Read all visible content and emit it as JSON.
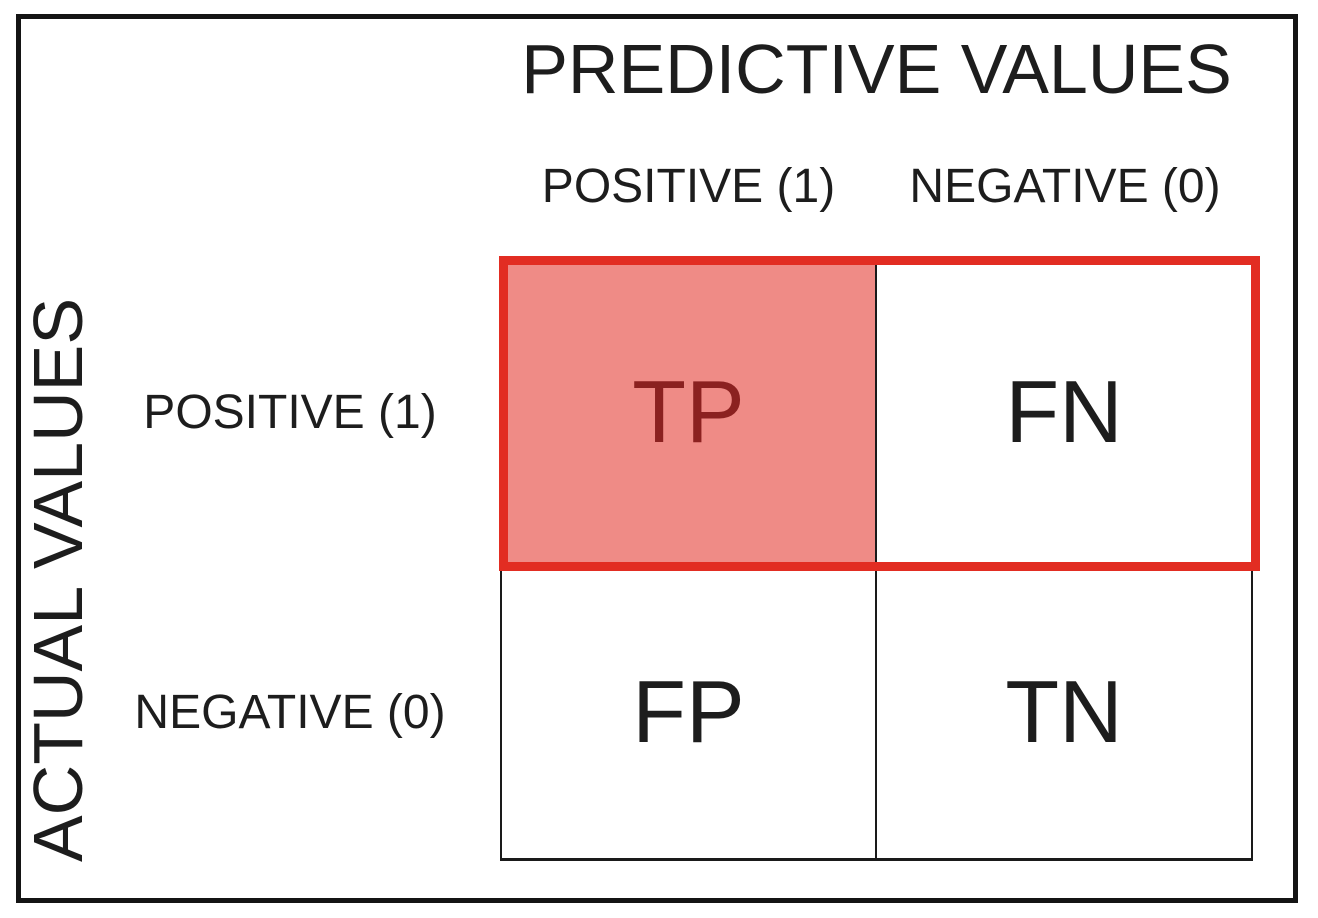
{
  "title": "PREDICTIVE VALUES",
  "left_axis_label": "ACTUAL VALUES",
  "columns": [
    {
      "label": "POSITIVE (1)"
    },
    {
      "label": "NEGATIVE (0)"
    }
  ],
  "rows": [
    {
      "label": "POSITIVE (1)"
    },
    {
      "label": "NEGATIVE (0)"
    }
  ],
  "cells": [
    [
      "TP",
      "FN"
    ],
    [
      "FP",
      "TN"
    ]
  ],
  "highlight": {
    "highlighted_cell": "TP",
    "framed_region": "top row (TP and FN)"
  },
  "colors": {
    "highlight_fill": "#ef8b86",
    "highlight_text": "#8b2120",
    "highlight_frame": "#e22d22",
    "frame_black": "#141414"
  }
}
